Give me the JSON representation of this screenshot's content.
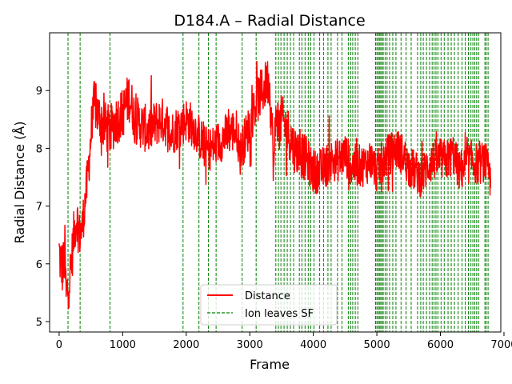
{
  "chart_data": {
    "type": "line",
    "title": "D184.A – Radial Distance",
    "xlabel": "Frame",
    "ylabel": "Radial Distance (Å)",
    "xlim": [
      -150,
      6950
    ],
    "ylim": [
      4.82,
      10.0
    ],
    "xticks": [
      0,
      1000,
      2000,
      3000,
      4000,
      5000,
      6000,
      7000
    ],
    "yticks": [
      5,
      6,
      7,
      8,
      9
    ],
    "grid": false,
    "legend_position": "bottom-center",
    "series": [
      {
        "name": "Distance",
        "color": "#ff0000",
        "anchors": {
          "x": [
            0,
            30,
            60,
            90,
            110,
            140,
            170,
            200,
            240,
            280,
            320,
            360,
            400,
            440,
            480,
            520,
            560,
            600,
            700,
            800,
            900,
            1000,
            1100,
            1150,
            1200,
            1300,
            1400,
            1500,
            1600,
            1700,
            1750,
            1800,
            1900,
            2000,
            2100,
            2200,
            2300,
            2400,
            2500,
            2600,
            2700,
            2800,
            2850,
            2900,
            3000,
            3100,
            3200,
            3300,
            3350,
            3380,
            3400,
            3420,
            3450,
            3500,
            3600,
            3700,
            3800,
            3900,
            4000,
            4100,
            4200,
            4300,
            4400,
            4500,
            4600,
            4700,
            4800,
            4900,
            5000,
            5100,
            5200,
            5300,
            5400,
            5500,
            5600,
            5700,
            5800,
            5900,
            6000,
            6100,
            6200,
            6300,
            6400,
            6500,
            6600,
            6700,
            6790
          ],
          "y": [
            6.2,
            6.0,
            5.9,
            6.2,
            5.4,
            5.6,
            5.8,
            6.1,
            6.6,
            6.8,
            6.5,
            6.6,
            7.0,
            7.4,
            7.9,
            8.5,
            8.8,
            8.6,
            8.4,
            8.3,
            8.5,
            8.6,
            8.9,
            8.7,
            8.5,
            8.4,
            8.3,
            8.4,
            8.5,
            8.4,
            8.2,
            8.3,
            8.4,
            8.5,
            8.4,
            8.2,
            8.0,
            8.0,
            8.1,
            8.2,
            8.3,
            8.3,
            7.9,
            8.1,
            8.4,
            8.8,
            9.0,
            9.2,
            8.4,
            7.6,
            8.3,
            8.7,
            8.4,
            8.5,
            8.3,
            8.0,
            7.9,
            7.8,
            7.6,
            7.6,
            7.7,
            7.8,
            7.8,
            7.9,
            7.7,
            7.7,
            7.7,
            7.8,
            7.6,
            7.8,
            7.9,
            8.0,
            7.9,
            7.7,
            7.6,
            7.5,
            7.7,
            7.8,
            7.8,
            7.8,
            7.9,
            7.6,
            7.7,
            7.8,
            7.7,
            7.8,
            7.4
          ]
        },
        "spread": {
          "x": [
            0,
            100,
            200,
            400,
            520,
            1000,
            2000,
            3000,
            3300,
            3450,
            4000,
            5000,
            6000,
            6790
          ],
          "y": [
            0.45,
            0.45,
            0.4,
            0.35,
            0.4,
            0.4,
            0.35,
            0.35,
            0.4,
            0.4,
            0.35,
            0.33,
            0.33,
            0.33
          ]
        },
        "x_start": 0,
        "x_end": 6790,
        "x_step": 5,
        "range": [
          5.05,
          9.75
        ]
      },
      {
        "name": "Ion leaves SF",
        "color": "#008000",
        "style": "dashed",
        "vlines": [
          140,
          330,
          800,
          1950,
          2200,
          2350,
          2470,
          2880,
          3100,
          3410,
          3450,
          3490,
          3540,
          3590,
          3640,
          3690,
          3780,
          3820,
          3870,
          3920,
          3960,
          4010,
          4100,
          4160,
          4230,
          4280,
          4380,
          4450,
          4550,
          4590,
          4620,
          4660,
          4700,
          4980,
          5000,
          5020,
          5040,
          5060,
          5080,
          5100,
          5130,
          5160,
          5200,
          5250,
          5300,
          5380,
          5460,
          5540,
          5640,
          5690,
          5730,
          5780,
          5830,
          5870,
          5900,
          5930,
          5960,
          6010,
          6060,
          6120,
          6170,
          6220,
          6280,
          6340,
          6390,
          6440,
          6480,
          6510,
          6540,
          6570,
          6600,
          6700,
          6720,
          6750
        ]
      }
    ]
  }
}
